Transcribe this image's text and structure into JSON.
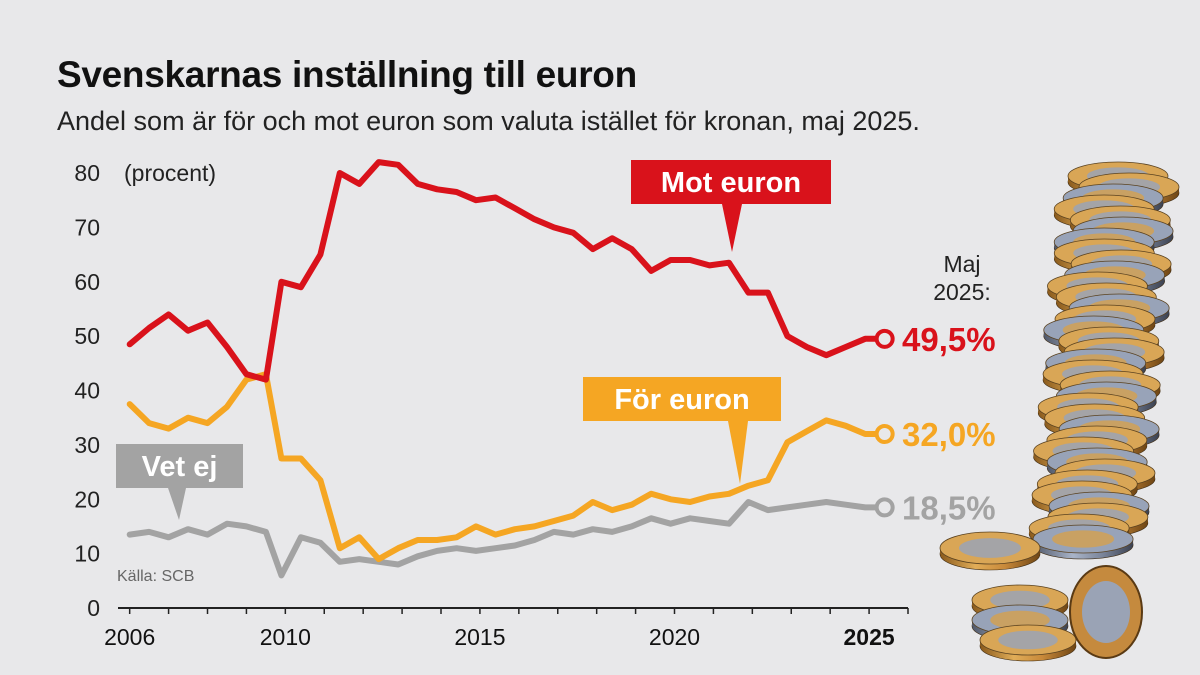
{
  "title": "Svenskarnas inställning till euron",
  "subtitle": "Andel som är för och mot euron som valuta istället för kronan, maj 2025.",
  "chart_data": {
    "type": "line",
    "unit_label": "(procent)",
    "ylim": [
      0,
      80
    ],
    "yticks": [
      0,
      10,
      20,
      30,
      40,
      50,
      60,
      70,
      80
    ],
    "xlim": [
      2005.7,
      2026.0
    ],
    "xticks": [
      {
        "value": 2006,
        "label": "2006",
        "bold": false
      },
      {
        "value": 2010,
        "label": "2010",
        "bold": false
      },
      {
        "value": 2015,
        "label": "2015",
        "bold": false
      },
      {
        "value": 2020,
        "label": "2020",
        "bold": false
      },
      {
        "value": 2025,
        "label": "2025",
        "bold": true
      }
    ],
    "source": "Källa: SCB",
    "date_note": [
      "Maj",
      "2025:"
    ],
    "series": [
      {
        "name": "Mot euron",
        "color": "#d9121b",
        "end_label": "49,5%",
        "x": [
          2006.0,
          2006.5,
          2007.0,
          2007.5,
          2008.0,
          2008.5,
          2009.0,
          2009.5,
          2009.9,
          2010.4,
          2010.9,
          2011.4,
          2011.9,
          2012.4,
          2012.9,
          2013.4,
          2013.9,
          2014.4,
          2014.9,
          2015.4,
          2015.9,
          2016.4,
          2016.9,
          2017.4,
          2017.9,
          2018.4,
          2018.9,
          2019.4,
          2019.9,
          2020.4,
          2020.9,
          2021.4,
          2021.9,
          2022.4,
          2022.9,
          2023.4,
          2023.9,
          2024.4,
          2024.9,
          2025.4
        ],
        "y": [
          48.5,
          51.5,
          54,
          51,
          52.5,
          48,
          43,
          42,
          60,
          59,
          65,
          80,
          78,
          82,
          81.5,
          78,
          77,
          76.5,
          75,
          75.5,
          73.5,
          71.5,
          70,
          69,
          66,
          68,
          66,
          62,
          64,
          64,
          63,
          63.5,
          58,
          58,
          50,
          48,
          46.5,
          48,
          49.5,
          49.5
        ]
      },
      {
        "name": "För euron",
        "color": "#f5a623",
        "end_label": "32,0%",
        "x": [
          2006.0,
          2006.5,
          2007.0,
          2007.5,
          2008.0,
          2008.5,
          2009.0,
          2009.5,
          2009.9,
          2010.4,
          2010.9,
          2011.4,
          2011.9,
          2012.4,
          2012.9,
          2013.4,
          2013.9,
          2014.4,
          2014.9,
          2015.4,
          2015.9,
          2016.4,
          2016.9,
          2017.4,
          2017.9,
          2018.4,
          2018.9,
          2019.4,
          2019.9,
          2020.4,
          2020.9,
          2021.4,
          2021.9,
          2022.4,
          2022.9,
          2023.4,
          2023.9,
          2024.4,
          2024.9,
          2025.4
        ],
        "y": [
          37.5,
          34,
          33,
          35,
          34,
          37,
          42,
          43,
          27.5,
          27.5,
          23.5,
          11,
          13,
          9,
          11,
          12.5,
          12.5,
          13,
          15,
          13.5,
          14.5,
          15,
          16,
          17,
          19.5,
          18,
          19,
          21,
          20,
          19.5,
          20.5,
          21,
          22.5,
          23.5,
          30.5,
          32.5,
          34.5,
          33.5,
          32,
          32
        ]
      },
      {
        "name": "Vet ej",
        "color": "#a3a3a3",
        "end_label": "18,5%",
        "x": [
          2006.0,
          2006.5,
          2007.0,
          2007.5,
          2008.0,
          2008.5,
          2009.0,
          2009.5,
          2009.9,
          2010.4,
          2010.9,
          2011.4,
          2011.9,
          2012.4,
          2012.9,
          2013.4,
          2013.9,
          2014.4,
          2014.9,
          2015.4,
          2015.9,
          2016.4,
          2016.9,
          2017.4,
          2017.9,
          2018.4,
          2018.9,
          2019.4,
          2019.9,
          2020.4,
          2020.9,
          2021.4,
          2021.9,
          2022.4,
          2022.9,
          2023.4,
          2023.9,
          2024.4,
          2024.9,
          2025.4
        ],
        "y": [
          13.5,
          14,
          13,
          14.5,
          13.5,
          15.5,
          15,
          14,
          6,
          13,
          12,
          8.5,
          9,
          8.5,
          8,
          9.5,
          10.5,
          11,
          10.5,
          11,
          11.5,
          12.5,
          14,
          13.5,
          14.5,
          14,
          15,
          16.5,
          15.5,
          16.5,
          16,
          15.5,
          19.5,
          18,
          18.5,
          19,
          19.5,
          19,
          18.5,
          18.5
        ]
      }
    ]
  }
}
